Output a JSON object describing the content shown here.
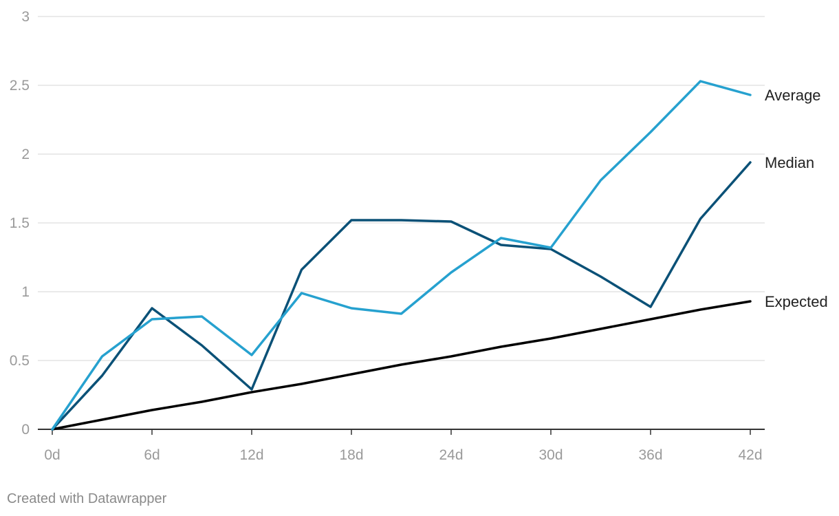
{
  "chart_data": {
    "type": "line",
    "x": [
      0,
      3,
      6,
      9,
      12,
      15,
      18,
      21,
      24,
      27,
      30,
      33,
      36,
      39,
      42
    ],
    "x_ticks": [
      0,
      6,
      12,
      18,
      24,
      30,
      36,
      42
    ],
    "x_tick_labels": [
      "0d",
      "6d",
      "12d",
      "18d",
      "24d",
      "30d",
      "36d",
      "42d"
    ],
    "y_ticks": [
      0,
      0.5,
      1,
      1.5,
      2,
      2.5,
      3
    ],
    "y_tick_labels": [
      "0",
      "0.5",
      "1",
      "1.5",
      "2",
      "2.5",
      "3"
    ],
    "xlim": [
      0,
      42
    ],
    "ylim": [
      0,
      3
    ],
    "grid": "horizontal",
    "legend": "direct labels at line ends",
    "series": [
      {
        "name": "Average",
        "color": "#26a1cf",
        "values": [
          0,
          0.53,
          0.8,
          0.82,
          0.54,
          0.99,
          0.88,
          0.84,
          1.14,
          1.39,
          1.32,
          1.81,
          2.16,
          2.53,
          2.43
        ]
      },
      {
        "name": "Median",
        "color": "#0b5177",
        "values": [
          0,
          0.39,
          0.88,
          0.61,
          0.29,
          1.16,
          1.52,
          1.52,
          1.51,
          1.34,
          1.31,
          1.11,
          0.89,
          1.53,
          1.94
        ]
      },
      {
        "name": "Expected",
        "color": "#000000",
        "values": [
          0,
          0.07,
          0.14,
          0.2,
          0.27,
          0.33,
          0.4,
          0.47,
          0.53,
          0.6,
          0.66,
          0.73,
          0.8,
          0.87,
          0.93
        ]
      }
    ]
  },
  "footer": {
    "credit": "Created with Datawrapper"
  }
}
